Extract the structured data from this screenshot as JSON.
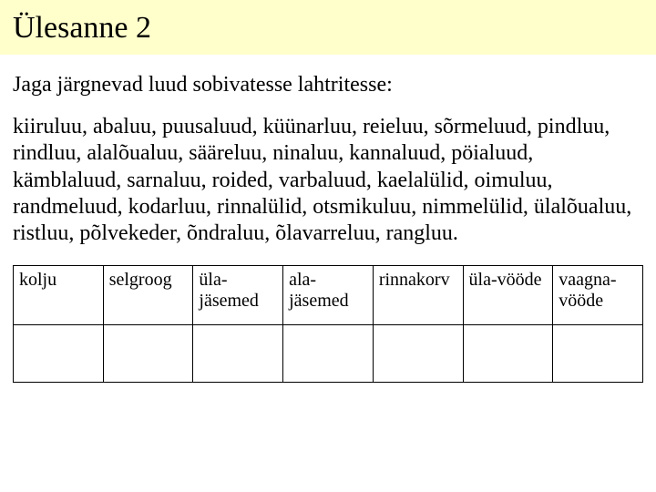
{
  "title": "Ülesanne 2",
  "intro": "Jaga järgnevad luud sobivatesse lahtritesse:",
  "bones_paragraph": "kiiruluu, abaluu, puusaluud, küünarluu, reieluu, sõrmeluud, pindluu, rindluu, alalõualuu, sääreluu, ninaluu, kannaluud, pöialuud, kämblaluud, sarnaluu, roided, varbaluud, kaelalülid, oimuluu, randmeluud, kodarluu, rinnalülid, otsmikuluu, nimmelülid, ülalõualuu, ristluu, põlvekeder, õndraluu, õlavarreluu, rangluu.",
  "table": {
    "headers": [
      "kolju",
      "selgroog",
      "üla-jäsemed",
      "ala-jäsemed",
      "rinnakorv",
      "üla-vööde",
      "vaagna-vööde"
    ]
  }
}
